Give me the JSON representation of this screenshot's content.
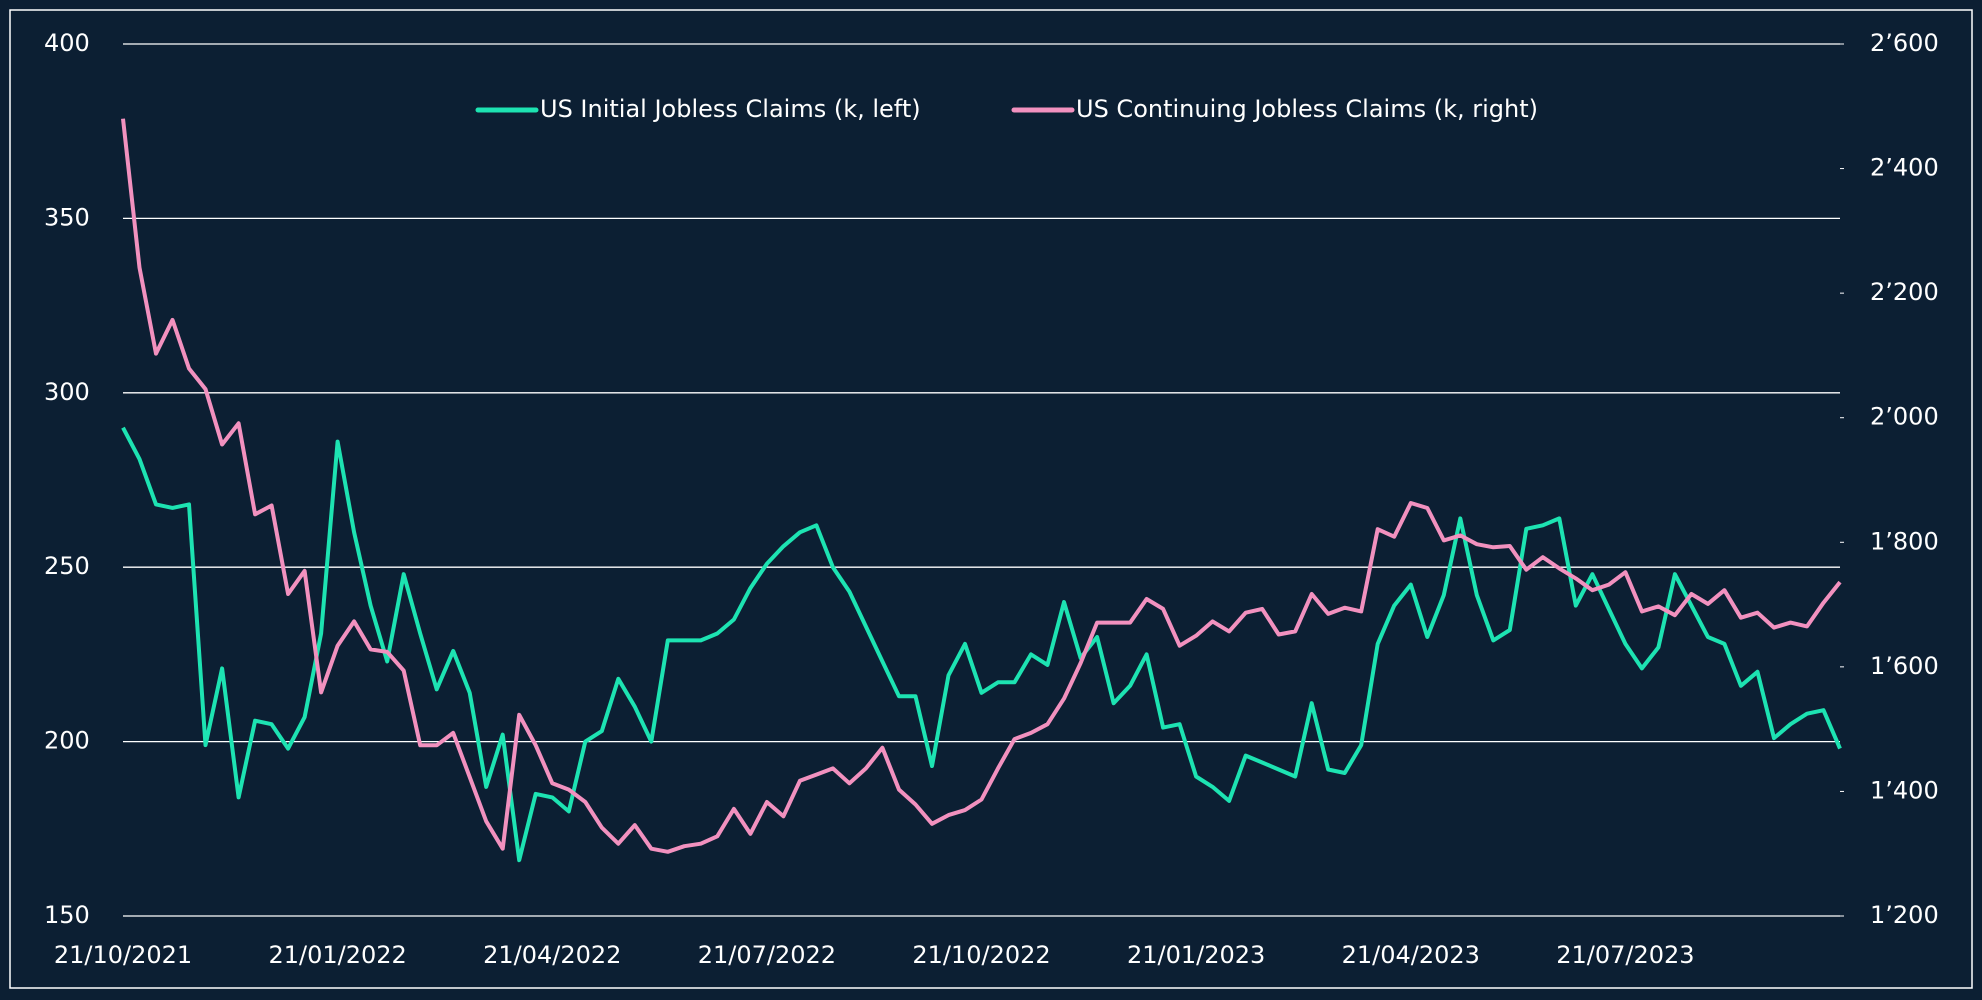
{
  "chart_data": {
    "type": "line",
    "categories": [
      "21/10/2021",
      null,
      null,
      null,
      null,
      null,
      null,
      null,
      null,
      null,
      null,
      null,
      null,
      "21/01/2022",
      null,
      null,
      null,
      null,
      null,
      null,
      null,
      null,
      null,
      null,
      null,
      null,
      "21/04/2022",
      null,
      null,
      null,
      null,
      null,
      null,
      null,
      null,
      null,
      null,
      null,
      null,
      "21/07/2022",
      null,
      null,
      null,
      null,
      null,
      null,
      null,
      null,
      null,
      null,
      null,
      null,
      "21/10/2022",
      null,
      null,
      null,
      null,
      null,
      null,
      null,
      null,
      null,
      null,
      null,
      null,
      "21/01/2023",
      null,
      null,
      null,
      null,
      null,
      null,
      null,
      null,
      null,
      null,
      null,
      null,
      "21/04/2023",
      null,
      null,
      null,
      null,
      null,
      null,
      null,
      null,
      null,
      null,
      null,
      null,
      "21/07/2023",
      null,
      null,
      null,
      null,
      null,
      null,
      null,
      null,
      null,
      null,
      null,
      null,
      null
    ],
    "series": [
      {
        "name": "US Initial Jobless Claims (k, left)",
        "color": "#1de3b2",
        "axis": "y",
        "values": [
          290,
          281,
          268,
          267,
          268,
          199,
          221,
          184,
          206,
          205,
          198,
          207,
          231,
          286,
          260,
          239,
          223,
          248,
          231,
          215,
          226,
          214,
          187,
          202,
          166,
          185,
          184,
          180,
          200,
          203,
          218,
          210,
          200,
          229,
          229,
          229,
          231,
          235,
          244,
          251,
          256,
          260,
          262,
          250,
          243,
          233,
          223,
          213,
          213,
          193,
          219,
          228,
          214,
          217,
          217,
          225,
          222,
          240,
          224,
          230,
          211,
          216,
          225,
          204,
          205,
          190,
          187,
          183,
          196,
          194,
          192,
          190,
          211,
          192,
          191,
          199,
          228,
          239,
          245,
          230,
          242,
          264,
          242,
          229,
          232,
          261,
          262,
          264,
          239,
          248,
          238,
          228,
          221,
          227,
          248,
          239,
          230,
          228,
          216,
          220,
          201,
          205,
          208,
          209,
          198
        ]
      },
      {
        "name": "US Continuing Jobless Claims (k, right)",
        "color": "#f291bf",
        "axis": "y2",
        "values": [
          2480,
          2241,
          2103,
          2157,
          2079,
          2046,
          1957,
          1991,
          1845,
          1859,
          1717,
          1754,
          1559,
          1634,
          1673,
          1628,
          1624,
          1594,
          1474,
          1474,
          1494,
          1423,
          1352,
          1308,
          1523,
          1474,
          1413,
          1403,
          1383,
          1342,
          1316,
          1346,
          1308,
          1303,
          1312,
          1316,
          1328,
          1372,
          1332,
          1383,
          1360,
          1417,
          1427,
          1437,
          1413,
          1437,
          1470,
          1403,
          1379,
          1348,
          1362,
          1370,
          1387,
          1437,
          1484,
          1494,
          1508,
          1549,
          1606,
          1671,
          1671,
          1671,
          1709,
          1693,
          1634,
          1650,
          1673,
          1657,
          1687,
          1693,
          1652,
          1657,
          1717,
          1685,
          1695,
          1689,
          1821,
          1809,
          1863,
          1855,
          1803,
          1811,
          1797,
          1792,
          1794,
          1756,
          1776,
          1758,
          1742,
          1723,
          1732,
          1752,
          1689,
          1697,
          1683,
          1717,
          1701,
          1723,
          1679,
          1687,
          1663,
          1671,
          1665,
          1703,
          1736
        ]
      }
    ],
    "ylim": [
      150,
      400
    ],
    "yticks": [
      150,
      200,
      250,
      300,
      350,
      400
    ],
    "y2lim": [
      1200,
      2600
    ],
    "y2ticks": [
      {
        "value": 1200,
        "label": "1’200"
      },
      {
        "value": 1400,
        "label": "1’400"
      },
      {
        "value": 1600,
        "label": "1’600"
      },
      {
        "value": 1800,
        "label": "1’800"
      },
      {
        "value": 2000,
        "label": "2’000"
      },
      {
        "value": 2200,
        "label": "2’200"
      },
      {
        "value": 2400,
        "label": "2’400"
      },
      {
        "value": 2600,
        "label": "2’600"
      }
    ],
    "grid": true,
    "legend": "top"
  }
}
